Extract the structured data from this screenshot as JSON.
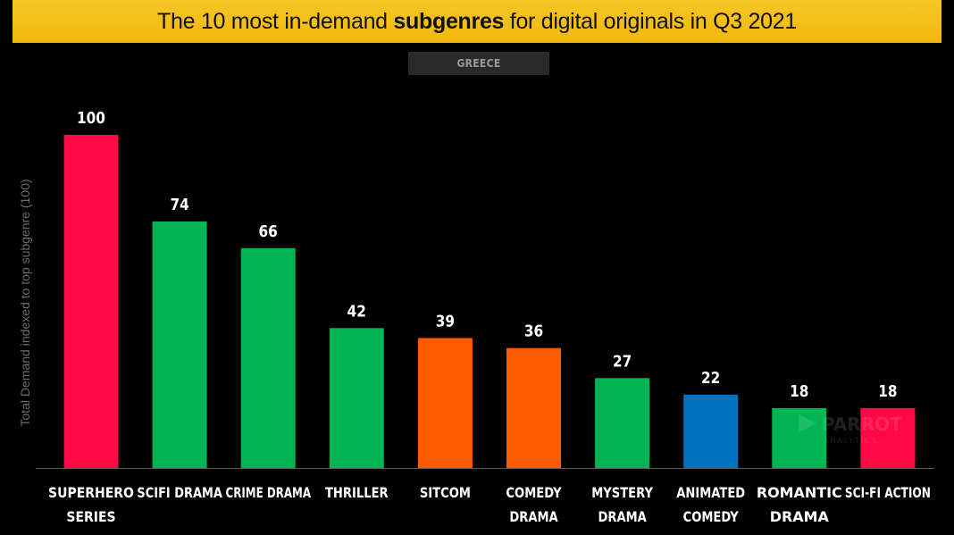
{
  "title": {
    "prefix": "The 10 most in-demand ",
    "bold": "subgenres",
    "suffix": " for digital originals in Q3 2021"
  },
  "country": "GREECE",
  "chart_data": {
    "type": "bar",
    "ylabel": "Total Demand indexed to top subgenre (100)",
    "xlabel": "",
    "ylim": [
      0,
      100
    ],
    "grid": false,
    "legend": "none",
    "categories": [
      [
        "SUPERHERO",
        "SERIES"
      ],
      [
        "SCIFI DRAMA"
      ],
      [
        "CRIME DRAMA"
      ],
      [
        "THRILLER"
      ],
      [
        "SITCOM"
      ],
      [
        "COMEDY",
        "DRAMA"
      ],
      [
        "MYSTERY",
        "DRAMA"
      ],
      [
        "ANIMATED",
        "COMEDY"
      ],
      [
        "ROMANTIC",
        "DRAMA"
      ],
      [
        "SCI-FI ACTION"
      ]
    ],
    "values": [
      100,
      74,
      66,
      42,
      39,
      36,
      27,
      22,
      18,
      18
    ],
    "colors": [
      "#ff0844",
      "#00b454",
      "#00b454",
      "#00b454",
      "#ff5a00",
      "#ff5a00",
      "#00b454",
      "#0070c0",
      "#00b454",
      "#ff0844"
    ]
  },
  "watermark": {
    "text": "PARROT",
    "subtext": "ANALYTICS"
  }
}
